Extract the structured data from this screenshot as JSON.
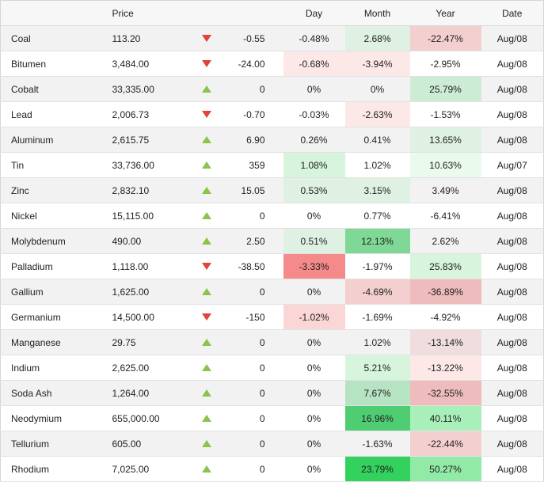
{
  "headers": {
    "name": "",
    "price": "Price",
    "arrow": "",
    "change": "",
    "day": "Day",
    "month": "Month",
    "year": "Year",
    "date": "Date"
  },
  "rows": [
    {
      "name": "Coal",
      "price": "113.20",
      "dir": "down",
      "change": "-0.55",
      "day": "-0.48%",
      "month": "2.68%",
      "year": "-22.47%",
      "date": "Aug/08",
      "day_bg": "",
      "month_bg": "#dff1e3",
      "year_bg": "#f4cfcf"
    },
    {
      "name": "Bitumen",
      "price": "3,484.00",
      "dir": "down",
      "change": "-24.00",
      "day": "-0.68%",
      "month": "-3.94%",
      "year": "-2.95%",
      "date": "Aug/08",
      "day_bg": "#fde8e8",
      "month_bg": "#fde8e8",
      "year_bg": ""
    },
    {
      "name": "Cobalt",
      "price": "33,335.00",
      "dir": "up",
      "change": "0",
      "day": "0%",
      "month": "0%",
      "year": "25.79%",
      "date": "Aug/08",
      "day_bg": "",
      "month_bg": "",
      "year_bg": "#cdecd5"
    },
    {
      "name": "Lead",
      "price": "2,006.73",
      "dir": "down",
      "change": "-0.70",
      "day": "-0.03%",
      "month": "-2.63%",
      "year": "-1.53%",
      "date": "Aug/08",
      "day_bg": "",
      "month_bg": "#fde8e8",
      "year_bg": ""
    },
    {
      "name": "Aluminum",
      "price": "2,615.75",
      "dir": "up",
      "change": "6.90",
      "day": "0.26%",
      "month": "0.41%",
      "year": "13.65%",
      "date": "Aug/08",
      "day_bg": "",
      "month_bg": "",
      "year_bg": "#dff1e3"
    },
    {
      "name": "Tin",
      "price": "33,736.00",
      "dir": "up",
      "change": "359",
      "day": "1.08%",
      "month": "1.02%",
      "year": "10.63%",
      "date": "Aug/07",
      "day_bg": "#d6f5dc",
      "month_bg": "",
      "year_bg": "#eafaed"
    },
    {
      "name": "Zinc",
      "price": "2,832.10",
      "dir": "up",
      "change": "15.05",
      "day": "0.53%",
      "month": "3.15%",
      "year": "3.49%",
      "date": "Aug/08",
      "day_bg": "#dff1e3",
      "month_bg": "#dff1e3",
      "year_bg": ""
    },
    {
      "name": "Nickel",
      "price": "15,115.00",
      "dir": "up",
      "change": "0",
      "day": "0%",
      "month": "0.77%",
      "year": "-6.41%",
      "date": "Aug/08",
      "day_bg": "",
      "month_bg": "",
      "year_bg": ""
    },
    {
      "name": "Molybdenum",
      "price": "490.00",
      "dir": "up",
      "change": "2.50",
      "day": "0.51%",
      "month": "12.13%",
      "year": "2.62%",
      "date": "Aug/08",
      "day_bg": "#dff1e3",
      "month_bg": "#7fd896",
      "year_bg": ""
    },
    {
      "name": "Palladium",
      "price": "1,118.00",
      "dir": "down",
      "change": "-38.50",
      "day": "-3.33%",
      "month": "-1.97%",
      "year": "25.83%",
      "date": "Aug/08",
      "day_bg": "#f58a8a",
      "month_bg": "",
      "year_bg": "#d6f5dc"
    },
    {
      "name": "Gallium",
      "price": "1,625.00",
      "dir": "up",
      "change": "0",
      "day": "0%",
      "month": "-4.69%",
      "year": "-36.89%",
      "date": "Aug/08",
      "day_bg": "",
      "month_bg": "#f4cfcf",
      "year_bg": "#eebcbc"
    },
    {
      "name": "Germanium",
      "price": "14,500.00",
      "dir": "down",
      "change": "-150",
      "day": "-1.02%",
      "month": "-1.69%",
      "year": "-4.92%",
      "date": "Aug/08",
      "day_bg": "#fbd6d6",
      "month_bg": "",
      "year_bg": ""
    },
    {
      "name": "Manganese",
      "price": "29.75",
      "dir": "up",
      "change": "0",
      "day": "0%",
      "month": "1.02%",
      "year": "-13.14%",
      "date": "Aug/08",
      "day_bg": "",
      "month_bg": "",
      "year_bg": "#f0dddd"
    },
    {
      "name": "Indium",
      "price": "2,625.00",
      "dir": "up",
      "change": "0",
      "day": "0%",
      "month": "5.21%",
      "year": "-13.22%",
      "date": "Aug/08",
      "day_bg": "",
      "month_bg": "#d6f5dc",
      "year_bg": "#fde8e8"
    },
    {
      "name": "Soda Ash",
      "price": "1,264.00",
      "dir": "up",
      "change": "0",
      "day": "0%",
      "month": "7.67%",
      "year": "-32.55%",
      "date": "Aug/08",
      "day_bg": "",
      "month_bg": "#b6e4c2",
      "year_bg": "#eebcbc"
    },
    {
      "name": "Neodymium",
      "price": "655,000.00",
      "dir": "up",
      "change": "0",
      "day": "0%",
      "month": "16.96%",
      "year": "40.11%",
      "date": "Aug/08",
      "day_bg": "",
      "month_bg": "#4fcd72",
      "year_bg": "#a8efb9"
    },
    {
      "name": "Tellurium",
      "price": "605.00",
      "dir": "up",
      "change": "0",
      "day": "0%",
      "month": "-1.63%",
      "year": "-22.44%",
      "date": "Aug/08",
      "day_bg": "",
      "month_bg": "",
      "year_bg": "#f4cfcf"
    },
    {
      "name": "Rhodium",
      "price": "7,025.00",
      "dir": "up",
      "change": "0",
      "day": "0%",
      "month": "23.79%",
      "year": "50.27%",
      "date": "Aug/08",
      "day_bg": "",
      "month_bg": "#33d15d",
      "year_bg": "#92eaa7"
    }
  ]
}
